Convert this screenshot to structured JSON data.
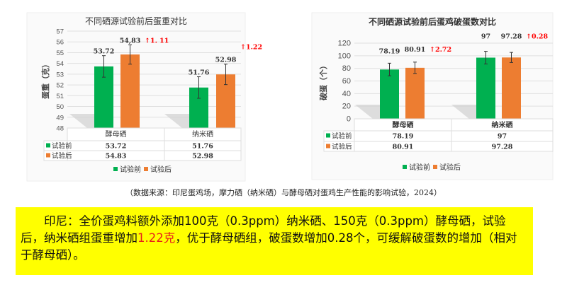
{
  "chart_data": [
    {
      "type": "bar",
      "title": "不同硒源试验前后蛋重对比",
      "ylabel": "蛋重（克）",
      "ylim": [
        48,
        57
      ],
      "yticks": [
        48,
        49,
        50,
        51,
        52,
        53,
        54,
        55,
        56,
        57
      ],
      "categories": [
        "酵母硒",
        "纳米硒"
      ],
      "series": [
        {
          "name": "试验前",
          "values": [
            53.72,
            51.76
          ],
          "labels": [
            "53.72",
            "51.76"
          ],
          "error": [
            1.0,
            1.0
          ],
          "color": "#00b050"
        },
        {
          "name": "试验后",
          "values": [
            54.83,
            52.98
          ],
          "labels": [
            "54,83",
            "52.98"
          ],
          "error": [
            0.9,
            0.95
          ],
          "color": "#ed7d31"
        }
      ],
      "annotations": [
        "↑1. 11",
        "↑1.22"
      ],
      "annotation_color": "#ff0000",
      "table": {
        "rows": [
          [
            "试验前",
            "53.72",
            "51.76"
          ],
          [
            "试验后",
            "54.83",
            "52.98"
          ]
        ]
      },
      "legend": "bottom",
      "grid": true
    },
    {
      "type": "bar",
      "title": "不同硒源试验前后蛋鸡破蛋数对比",
      "ylabel": "破蛋（个）",
      "ylim": [
        0,
        120
      ],
      "yticks": [
        0,
        20,
        40,
        60,
        80,
        100,
        120
      ],
      "categories": [
        "酵母硒",
        "纳米硒"
      ],
      "series": [
        {
          "name": "试验前",
          "values": [
            78.19,
            97
          ],
          "labels": [
            "78.19",
            "97"
          ],
          "error": [
            10,
            10
          ],
          "color": "#00b050"
        },
        {
          "name": "试验后",
          "values": [
            80.91,
            97.28
          ],
          "labels": [
            "80.91",
            "97.28"
          ],
          "error": [
            9,
            8
          ],
          "color": "#ed7d31"
        }
      ],
      "annotations": [
        "↑2.72",
        "↑0.28"
      ],
      "annotation_color": "#ff0000",
      "table": {
        "rows": [
          [
            "试验前",
            "78.19",
            "97"
          ],
          [
            "试验后",
            "80.91",
            "97.28"
          ]
        ]
      },
      "legend": "bottom",
      "grid": true
    }
  ],
  "caption": "（数据来源：印尼蛋鸡场，摩力硒（纳米硒）与酵母硒对蛋鸡生产性能的影响试验，2024）",
  "note": {
    "part1": "印尼：全价蛋鸡料额外添加100克（0.3ppm）纳米硒、150克（0.3ppm）酵母硒，试验后，纳米硒组蛋重增加",
    "highlight": "1.22克",
    "part2": "，优于酵母硒组，破蛋数增加0.28个，可缓解破蛋数的增加（相对于酵母硒）。"
  }
}
